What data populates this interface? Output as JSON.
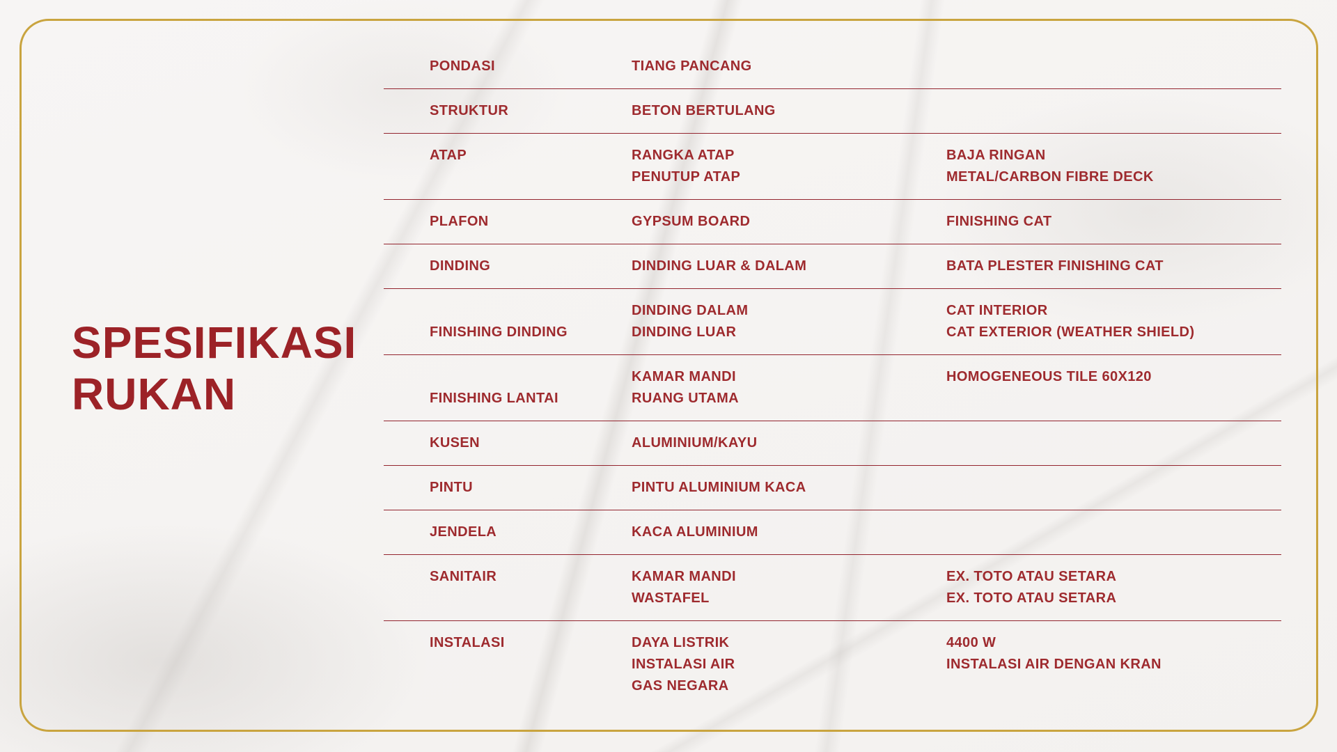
{
  "page": {
    "title_line1": "SPESIFIKASI",
    "title_line2": "RUKAN"
  },
  "colors": {
    "text_red": "#9E2A2E",
    "divider_red": "#93242E",
    "title_red": "#9C2227",
    "frame_gold": "#C9A43F",
    "background_marble": "#F5F3F1"
  },
  "table": {
    "rows": [
      {
        "label": "PONDASI",
        "label_align": "center",
        "items": [
          "TIANG PANCANG"
        ],
        "specs": [],
        "divider": true
      },
      {
        "label": "STRUKTUR",
        "label_align": "center",
        "items": [
          "BETON BERTULANG"
        ],
        "specs": [],
        "divider": true
      },
      {
        "label": "ATAP",
        "label_align": "top",
        "items": [
          "RANGKA ATAP",
          "PENUTUP ATAP"
        ],
        "specs": [
          "BAJA RINGAN",
          "METAL/CARBON FIBRE DECK"
        ],
        "divider": true
      },
      {
        "label": "PLAFON",
        "label_align": "center",
        "items": [
          "GYPSUM BOARD"
        ],
        "specs": [
          "FINISHING CAT"
        ],
        "divider": true
      },
      {
        "label": "DINDING",
        "label_align": "center",
        "items": [
          "DINDING LUAR & DALAM"
        ],
        "specs": [
          "BATA PLESTER FINISHING CAT"
        ],
        "divider": true
      },
      {
        "label": "FINISHING DINDING",
        "label_align": "bottom",
        "items": [
          "DINDING DALAM",
          "DINDING LUAR"
        ],
        "specs": [
          "CAT INTERIOR",
          "CAT EXTERIOR (WEATHER SHIELD)"
        ],
        "divider": true
      },
      {
        "label": "FINISHING LANTAI",
        "label_align": "bottom",
        "items": [
          "KAMAR MANDI",
          "RUANG UTAMA"
        ],
        "specs": [
          "HOMOGENEOUS TILE 60X120"
        ],
        "divider": true
      },
      {
        "label": "KUSEN",
        "label_align": "center",
        "items": [
          "ALUMINIUM/KAYU"
        ],
        "specs": [],
        "divider": true
      },
      {
        "label": "PINTU",
        "label_align": "center",
        "items": [
          "PINTU ALUMINIUM KACA"
        ],
        "specs": [],
        "divider": true
      },
      {
        "label": "JENDELA",
        "label_align": "center",
        "items": [
          "KACA ALUMINIUM"
        ],
        "specs": [],
        "divider": true
      },
      {
        "label": "SANITAIR",
        "label_align": "top",
        "items": [
          "KAMAR MANDI",
          "WASTAFEL"
        ],
        "specs": [
          "EX. TOTO ATAU SETARA",
          "EX. TOTO ATAU SETARA"
        ],
        "divider": true
      },
      {
        "label": "INSTALASI",
        "label_align": "top",
        "items": [
          "DAYA LISTRIK",
          "INSTALASI AIR",
          "GAS NEGARA"
        ],
        "specs": [
          "4400 W",
          "INSTALASI AIR DENGAN KRAN"
        ],
        "divider": false
      }
    ]
  }
}
